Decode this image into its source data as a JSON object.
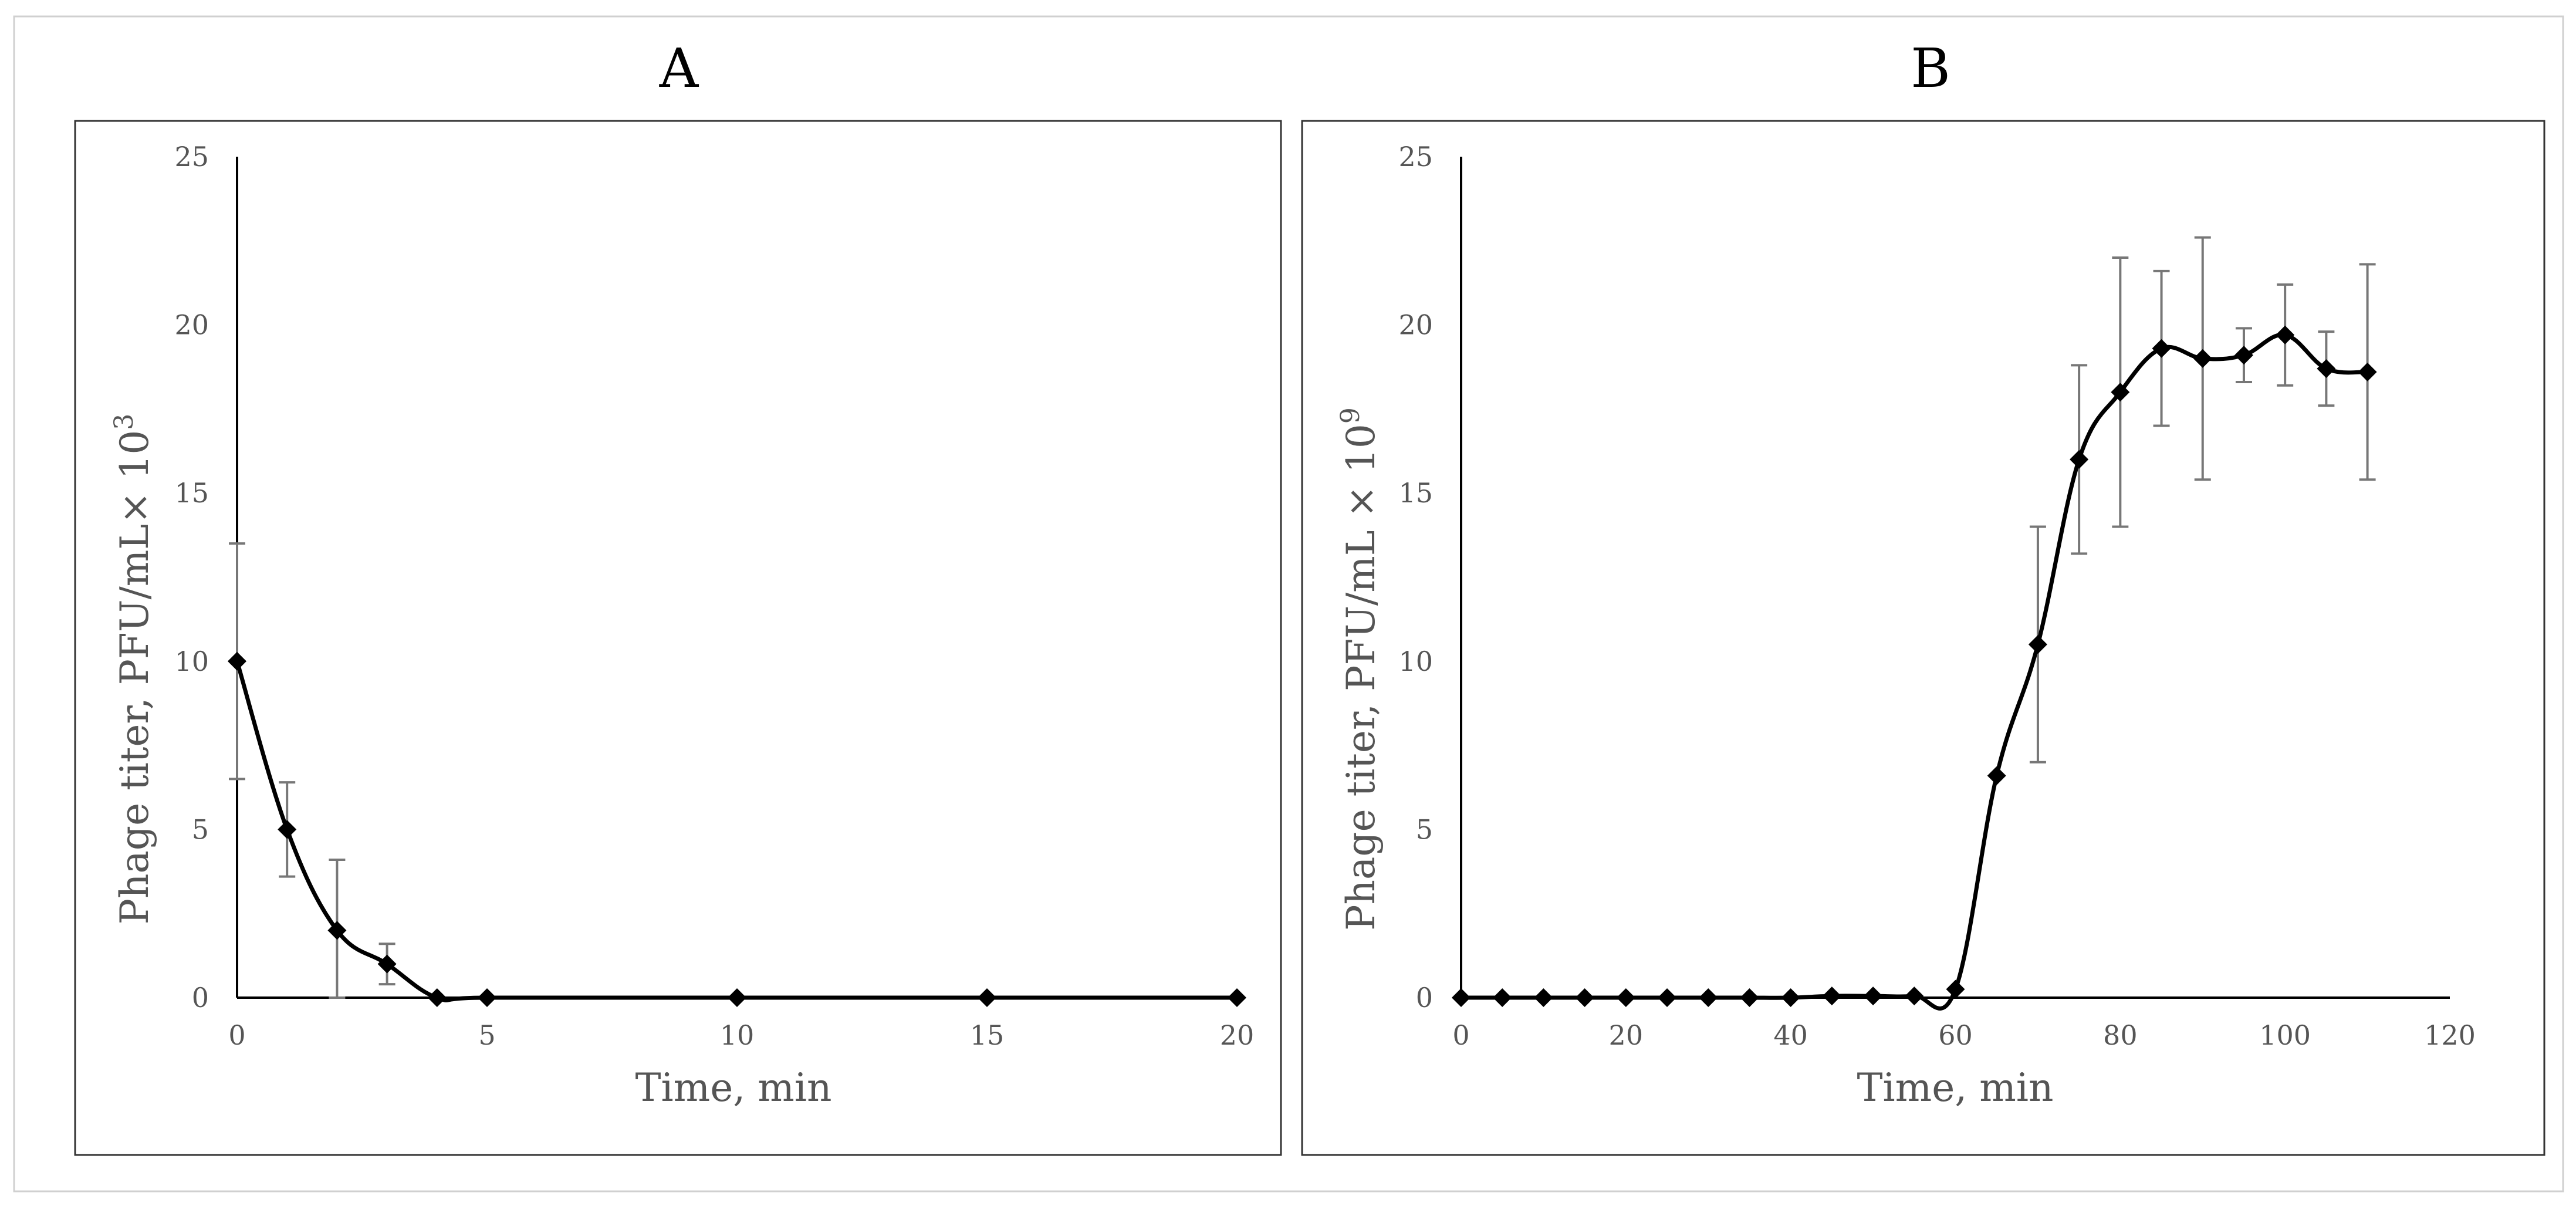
{
  "chart_data": [
    {
      "type": "line",
      "panel_label": "A",
      "xlabel": "Time, min",
      "ylabel": "Phage titer, PFU/mL× 10",
      "ylabel_exponent": "3",
      "xlim": [
        0,
        20
      ],
      "ylim": [
        0,
        25
      ],
      "xticks": [
        0,
        5,
        10,
        15,
        20
      ],
      "yticks": [
        0,
        5,
        10,
        15,
        20,
        25
      ],
      "x": [
        0,
        1,
        2,
        3,
        4,
        5,
        10,
        15,
        20
      ],
      "y": [
        10,
        5,
        2,
        1,
        0,
        0,
        0,
        0,
        0
      ],
      "error": [
        3.5,
        1.4,
        2.1,
        0.6,
        0,
        0,
        0,
        0,
        0
      ],
      "grid": false,
      "marker": "diamond"
    },
    {
      "type": "line",
      "panel_label": "B",
      "xlabel": "Time, min",
      "ylabel": "Phage titer, PFU/mL × 10",
      "ylabel_exponent": "9",
      "xlim": [
        0,
        120
      ],
      "ylim": [
        0,
        25
      ],
      "xticks": [
        0,
        20,
        40,
        60,
        80,
        100,
        120
      ],
      "yticks": [
        0,
        5,
        10,
        15,
        20,
        25
      ],
      "x": [
        0,
        5,
        10,
        15,
        20,
        25,
        30,
        35,
        40,
        45,
        50,
        55,
        60,
        65,
        70,
        75,
        80,
        85,
        90,
        95,
        100,
        105,
        110
      ],
      "y": [
        0,
        0,
        0,
        0,
        0,
        0,
        0,
        0,
        0,
        0.05,
        0.05,
        0.05,
        0.25,
        6.6,
        10.5,
        16,
        18,
        19.3,
        19,
        19.1,
        19.7,
        18.7,
        18.6
      ],
      "error": [
        0,
        0,
        0,
        0,
        0,
        0,
        0,
        0,
        0,
        0,
        0,
        0,
        0,
        0,
        3.5,
        2.8,
        4,
        2.3,
        3.6,
        0.8,
        1.5,
        1.1,
        3.2
      ],
      "grid": false,
      "marker": "diamond"
    }
  ]
}
